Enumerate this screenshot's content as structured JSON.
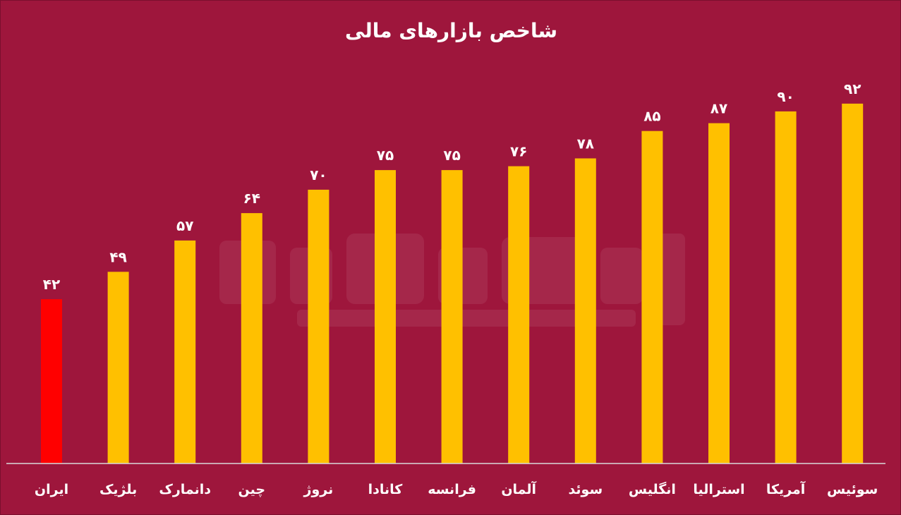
{
  "chart_data": {
    "type": "bar",
    "title": "شاخص بازارهای مالی",
    "xlabel": "",
    "ylabel": "",
    "ylim": [
      0,
      100
    ],
    "grid": false,
    "legend": "none",
    "categories": [
      "ایران",
      "بلژیک",
      "دانمارک",
      "چین",
      "نروژ",
      "کانادا",
      "فرانسه",
      "آلمان",
      "سوئد",
      "انگلیس",
      "استرالیا",
      "آمریکا",
      "سوئیس"
    ],
    "values": [
      42,
      49,
      57,
      64,
      70,
      75,
      75,
      76,
      78,
      85,
      87,
      90,
      92
    ],
    "value_labels": [
      "۴۲",
      "۴۹",
      "۵۷",
      "۶۴",
      "۷۰",
      "۷۵",
      "۷۵",
      "۷۶",
      "۷۸",
      "۸۵",
      "۸۷",
      "۹۰",
      "۹۲"
    ],
    "colors": {
      "background": "#9e163c",
      "bar": "#ffc000",
      "highlight_bar": "#ff0000",
      "axis": "#d9d9d9",
      "text": "#ffffff"
    },
    "highlight_index": 0
  }
}
